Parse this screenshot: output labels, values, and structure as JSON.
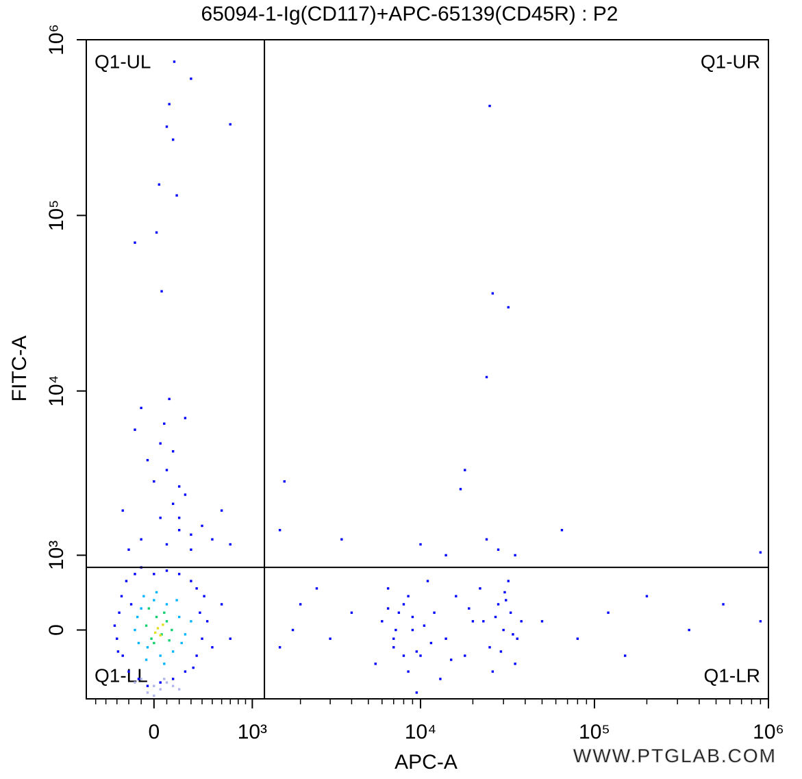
{
  "chart_data": {
    "type": "scatter",
    "title": "65094-1-Ig(CD117)+APC-65139(CD45R) : P2",
    "x_label": "APC-A",
    "y_label": "FITC-A",
    "watermark": "WWW.PTGLAB.COM",
    "xscale": "biexponential",
    "yscale": "biexponential",
    "xlim": [
      -600,
      1000000
    ],
    "ylim": [
      -900,
      1000000
    ],
    "xticks": [
      0,
      {
        "value": 1000,
        "label": "10³"
      },
      {
        "value": 10000,
        "label": "10⁴"
      },
      {
        "value": 100000,
        "label": "10⁵"
      },
      {
        "value": 1000000,
        "label": "10⁶"
      }
    ],
    "yticks": [
      0,
      {
        "value": 1000,
        "label": "10³"
      },
      {
        "value": 10000,
        "label": "10⁴"
      },
      {
        "value": 100000,
        "label": "10⁵"
      },
      {
        "value": 1000000,
        "label": "10⁶"
      }
    ],
    "xminorticks": [
      -500,
      -400,
      -300,
      -200,
      -100,
      100,
      200,
      300,
      400,
      500,
      600,
      700,
      800,
      900,
      2000,
      3000,
      4000,
      5000,
      6000,
      7000,
      8000,
      9000,
      20000,
      30000,
      40000,
      50000,
      60000,
      70000,
      80000,
      90000,
      200000,
      300000,
      400000,
      500000,
      600000,
      700000,
      800000,
      900000
    ],
    "quadrant_gate": {
      "x": 1200,
      "y": 800
    },
    "quadrants": {
      "UL": "Q1-UL",
      "UR": "Q1-UR",
      "LL": "Q1-LL",
      "LR": "Q1-LR"
    },
    "series": [
      {
        "color": "#b0b4e8",
        "x": [
          -100,
          0,
          50,
          100,
          -50,
          150,
          0,
          80,
          -150,
          200
        ],
        "values": [
          -600,
          -700,
          -750,
          -650,
          -800,
          -700,
          -850,
          -600,
          -650,
          -750
        ]
      },
      {
        "color": "#0000ff",
        "x": [
          -300,
          -280,
          -250,
          -260,
          -220,
          -200,
          -180,
          -150,
          -120,
          -100,
          -50,
          0,
          50,
          100,
          150,
          200,
          250,
          300,
          350,
          380,
          400,
          420,
          350,
          450,
          500,
          600,
          700,
          -320,
          -290,
          320
        ],
        "values": [
          -100,
          200,
          -300,
          400,
          600,
          -500,
          300,
          700,
          -600,
          800,
          -700,
          700,
          -650,
          750,
          -600,
          700,
          -500,
          600,
          -300,
          200,
          -100,
          400,
          500,
          100,
          -200,
          300,
          -100,
          50,
          -250,
          -450
        ]
      },
      {
        "color": "#0000ff",
        "x": [
          100,
          200,
          50,
          300,
          -100,
          150,
          250,
          0,
          100,
          200,
          -50,
          50,
          -150,
          150,
          300,
          400,
          500,
          -200,
          600,
          700,
          -250,
          80,
          250,
          -100,
          200,
          120,
          40,
          20,
          60,
          -150,
          100,
          120,
          180,
          300,
          150,
          700,
          160
        ],
        "values": [
          1200,
          1500,
          1800,
          1400,
          1300,
          2200,
          2500,
          3000,
          3500,
          2800,
          4000,
          5000,
          6000,
          4500,
          1100,
          1600,
          1300,
          1100,
          2000,
          1200,
          2000,
          6500,
          7000,
          8000,
          1800,
          9000,
          150000,
          80000,
          37000,
          70000,
          320000,
          430000,
          130000,
          600000,
          270000,
          330000,
          750000
        ]
      },
      {
        "color": "#0000ff",
        "x": [
          6000,
          7000,
          8000,
          9000,
          10000,
          12000,
          14000,
          16000,
          20000,
          25000,
          28000,
          30000,
          33000,
          35000,
          38000,
          5500,
          6500,
          8500,
          11000,
          13000,
          18000,
          22000,
          26000,
          32000,
          36000,
          4000,
          3000,
          2000,
          1500,
          1800,
          2500,
          50000,
          80000,
          120000,
          150000,
          200000,
          350000,
          550000,
          900000,
          9500,
          1600,
          1500,
          3500,
          10000,
          14000,
          24000,
          28000,
          35000,
          65000,
          900000,
          25000,
          26000,
          32000,
          24000,
          18000,
          17000
        ],
        "values": [
          100,
          -200,
          300,
          0,
          -300,
          200,
          -100,
          400,
          100,
          -200,
          300,
          0,
          200,
          -400,
          100,
          -400,
          500,
          -500,
          600,
          -600,
          -300,
          500,
          -500,
          600,
          -100,
          200,
          -100,
          300,
          -200,
          0,
          500,
          100,
          -100,
          200,
          -300,
          400,
          0,
          300,
          100,
          -800,
          3000,
          1500,
          1300,
          1200,
          1000,
          1300,
          1100,
          1000,
          1500,
          1050,
          420000,
          36000,
          30000,
          12000,
          3500,
          2700
        ]
      },
      {
        "color": "#0000ff",
        "x": [
          7000,
          7500,
          8000,
          8500,
          9000,
          9500,
          10500,
          11500,
          6500,
          7200,
          27000,
          29000,
          31000,
          34000,
          23000,
          30500,
          15000,
          19000
        ],
        "values": [
          -100,
          200,
          -300,
          400,
          150,
          -250,
          50,
          -150,
          250,
          0,
          150,
          -250,
          350,
          -50,
          100,
          450,
          -350,
          250
        ]
      },
      {
        "color": "#00b4ff",
        "x": [
          -150,
          -100,
          -50,
          0,
          50,
          100,
          150,
          200,
          250,
          -120,
          -80,
          20,
          80,
          180,
          220,
          -130,
          300,
          -60
        ],
        "values": [
          0,
          250,
          -200,
          350,
          -300,
          300,
          -250,
          150,
          -50,
          -150,
          400,
          450,
          -400,
          350,
          -150,
          150,
          100,
          -350
        ]
      },
      {
        "color": "#10d070",
        "x": [
          -60,
          -20,
          20,
          60,
          100,
          140,
          0,
          80,
          -40,
          120
        ],
        "values": [
          50,
          -100,
          150,
          -50,
          100,
          0,
          -150,
          200,
          250,
          -120
        ]
      },
      {
        "color": "#e0e020",
        "x": [
          30,
          70,
          10,
          50
        ],
        "values": [
          20,
          60,
          -30,
          -60
        ]
      }
    ]
  }
}
